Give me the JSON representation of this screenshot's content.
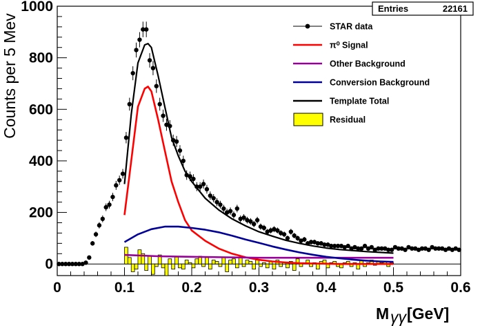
{
  "chart_data": {
    "type": "line",
    "xlabel": "M",
    "xlabel_sub": "γγ",
    "xlabel_unit": "[GeV]",
    "ylabel": "Counts per 5 Mev",
    "xlim": [
      0,
      0.6
    ],
    "ylim": [
      -45,
      1000
    ],
    "x_ticks": [
      "0",
      "0.1",
      "0.2",
      "0.3",
      "0.4",
      "0.5",
      "0.6"
    ],
    "y_ticks": [
      "0",
      "200",
      "400",
      "600",
      "800",
      "1000"
    ],
    "stats_box": {
      "label": "Entries",
      "value": "22161"
    },
    "legend": [
      {
        "label": "STAR data",
        "symbol": "marker",
        "color": "#000000"
      },
      {
        "label": "π⁰ Signal",
        "symbol": "line",
        "color": "#ff0000"
      },
      {
        "label": "Other Background",
        "symbol": "line",
        "color": "#990099"
      },
      {
        "label": "Conversion Background",
        "symbol": "line",
        "color": "#000099"
      },
      {
        "label": "Template Total",
        "symbol": "line",
        "color": "#000000"
      },
      {
        "label": "Residual",
        "symbol": "fill",
        "color": "#ffff00"
      }
    ],
    "series": [
      {
        "name": "STAR data",
        "kind": "points",
        "color": "#000000",
        "x": [
          0.0025,
          0.0075,
          0.0125,
          0.0175,
          0.0225,
          0.0275,
          0.0325,
          0.0375,
          0.0425,
          0.0475,
          0.0525,
          0.0575,
          0.0625,
          0.0675,
          0.0725,
          0.0775,
          0.0825,
          0.0875,
          0.0925,
          0.0975,
          0.1025,
          0.1075,
          0.1125,
          0.1175,
          0.1225,
          0.1275,
          0.1325,
          0.1375,
          0.1425,
          0.1475,
          0.1525,
          0.1575,
          0.1625,
          0.1675,
          0.1725,
          0.1775,
          0.1825,
          0.1875,
          0.1925,
          0.1975,
          0.2025,
          0.2075,
          0.2125,
          0.2175,
          0.2225,
          0.2275,
          0.2325,
          0.2375,
          0.2425,
          0.2475,
          0.2525,
          0.2575,
          0.2625,
          0.2675,
          0.2725,
          0.2775,
          0.2825,
          0.2875,
          0.2925,
          0.2975,
          0.3025,
          0.3075,
          0.3125,
          0.3175,
          0.3225,
          0.3275,
          0.3325,
          0.3375,
          0.3425,
          0.3475,
          0.3525,
          0.3575,
          0.3625,
          0.3675,
          0.3725,
          0.3775,
          0.3825,
          0.3875,
          0.3925,
          0.3975,
          0.4025,
          0.4075,
          0.4125,
          0.4175,
          0.4225,
          0.4275,
          0.4325,
          0.4375,
          0.4425,
          0.4475,
          0.4525,
          0.4575,
          0.4625,
          0.4675,
          0.4725,
          0.4775,
          0.4825,
          0.4875,
          0.4925,
          0.4975,
          0.5025,
          0.5075,
          0.5125,
          0.5175,
          0.5225,
          0.5275,
          0.5325,
          0.5375,
          0.5425,
          0.5475,
          0.5525,
          0.5575,
          0.5625,
          0.5675,
          0.5725,
          0.5775,
          0.5825,
          0.5875,
          0.5925,
          0.5975
        ],
        "y": [
          0,
          0,
          0,
          0,
          0,
          0,
          0,
          0,
          5,
          25,
          80,
          115,
          150,
          175,
          220,
          230,
          260,
          305,
          325,
          350,
          490,
          620,
          740,
          830,
          870,
          910,
          910,
          790,
          760,
          690,
          620,
          575,
          540,
          535,
          480,
          475,
          440,
          400,
          345,
          340,
          330,
          300,
          300,
          310,
          290,
          265,
          255,
          240,
          230,
          215,
          200,
          205,
          190,
          215,
          175,
          180,
          170,
          165,
          155,
          170,
          145,
          140,
          125,
          130,
          135,
          130,
          120,
          115,
          100,
          125,
          110,
          100,
          90,
          95,
          80,
          85,
          85,
          80,
          80,
          75,
          75,
          70,
          70,
          70,
          70,
          65,
          70,
          60,
          65,
          60,
          60,
          70,
          60,
          65,
          55,
          60,
          60,
          60,
          55,
          55,
          65,
          60,
          60,
          55,
          65,
          60,
          60,
          55,
          60,
          60,
          55,
          65,
          60,
          60,
          60,
          55,
          60,
          55,
          60,
          55
        ]
      },
      {
        "name": "π⁰ Signal",
        "kind": "curve",
        "color": "#ff0000",
        "x": [
          0.1,
          0.11,
          0.12,
          0.13,
          0.135,
          0.14,
          0.15,
          0.16,
          0.17,
          0.18,
          0.19,
          0.2,
          0.22,
          0.24,
          0.26,
          0.28,
          0.3,
          0.32,
          0.34,
          0.36,
          0.38,
          0.4,
          0.42,
          0.44,
          0.46,
          0.48,
          0.5
        ],
        "y": [
          190,
          400,
          610,
          680,
          688,
          670,
          560,
          440,
          320,
          240,
          170,
          130,
          90,
          60,
          40,
          26,
          16,
          10,
          6,
          3,
          2,
          1,
          0,
          0,
          0,
          0,
          0
        ]
      },
      {
        "name": "Other Background",
        "kind": "curve",
        "color": "#990099",
        "x": [
          0.1,
          0.15,
          0.2,
          0.25,
          0.3,
          0.35,
          0.4,
          0.45,
          0.5
        ],
        "y": [
          35,
          30,
          28,
          26,
          24,
          24,
          24,
          24,
          24
        ]
      },
      {
        "name": "Conversion Background",
        "kind": "curve",
        "color": "#000099",
        "x": [
          0.1,
          0.12,
          0.14,
          0.16,
          0.18,
          0.2,
          0.22,
          0.24,
          0.26,
          0.28,
          0.3,
          0.32,
          0.34,
          0.36,
          0.38,
          0.4,
          0.42,
          0.44,
          0.46,
          0.48,
          0.5
        ],
        "y": [
          85,
          115,
          135,
          145,
          145,
          140,
          133,
          123,
          110,
          95,
          82,
          68,
          56,
          45,
          36,
          28,
          22,
          17,
          13,
          10,
          8
        ]
      },
      {
        "name": "Template Total",
        "kind": "curve",
        "color": "#000000",
        "x": [
          0.1,
          0.11,
          0.12,
          0.13,
          0.135,
          0.14,
          0.15,
          0.16,
          0.17,
          0.18,
          0.19,
          0.2,
          0.22,
          0.24,
          0.26,
          0.28,
          0.3,
          0.32,
          0.34,
          0.36,
          0.38,
          0.4,
          0.42,
          0.44,
          0.46,
          0.48,
          0.5
        ],
        "y": [
          310,
          580,
          780,
          850,
          855,
          840,
          730,
          610,
          490,
          420,
          360,
          320,
          255,
          210,
          175,
          148,
          125,
          108,
          92,
          80,
          70,
          62,
          56,
          52,
          48,
          45,
          42
        ]
      },
      {
        "name": "Residual",
        "kind": "histogram",
        "color": "#ffff00",
        "x": [
          0.1025,
          0.1075,
          0.1125,
          0.1175,
          0.1225,
          0.1275,
          0.1325,
          0.1375,
          0.1425,
          0.1475,
          0.1525,
          0.1575,
          0.1625,
          0.1675,
          0.1725,
          0.1775,
          0.1825,
          0.1875,
          0.1925,
          0.1975,
          0.2025,
          0.2075,
          0.2125,
          0.2175,
          0.2225,
          0.2275,
          0.2325,
          0.2375,
          0.2425,
          0.2475,
          0.2525,
          0.2575,
          0.2625,
          0.2675,
          0.2725,
          0.2775,
          0.2825,
          0.2875,
          0.2925,
          0.2975,
          0.3025,
          0.3075,
          0.3125,
          0.3175,
          0.3225,
          0.3275,
          0.3325,
          0.3375,
          0.3425,
          0.3475,
          0.3525,
          0.3575,
          0.3625,
          0.3675,
          0.3725,
          0.3775,
          0.3825,
          0.3875,
          0.3925,
          0.3975,
          0.4025,
          0.4075,
          0.4125,
          0.4175,
          0.4225,
          0.4275,
          0.4325,
          0.4375,
          0.4425,
          0.4475,
          0.4525,
          0.4575,
          0.4625,
          0.4675,
          0.4725,
          0.4775,
          0.4825,
          0.4875,
          0.4925,
          0.4975
        ],
        "y": [
          65,
          25,
          -30,
          -20,
          55,
          40,
          -25,
          30,
          -40,
          -10,
          35,
          -15,
          -45,
          20,
          -20,
          30,
          -15,
          -20,
          15,
          5,
          -15,
          20,
          30,
          -10,
          25,
          -20,
          15,
          10,
          -10,
          25,
          -30,
          15,
          20,
          -15,
          25,
          -10,
          15,
          10,
          -20,
          15,
          -10,
          5,
          -15,
          10,
          -20,
          15,
          -10,
          5,
          -15,
          10,
          -25,
          20,
          -10,
          5,
          15,
          -10,
          5,
          -20,
          10,
          15,
          -15,
          5,
          10,
          -10,
          -15,
          5,
          10,
          -10,
          5,
          -20,
          15,
          -10,
          5,
          15,
          -5,
          10,
          5,
          10,
          -10,
          5
        ]
      }
    ]
  }
}
